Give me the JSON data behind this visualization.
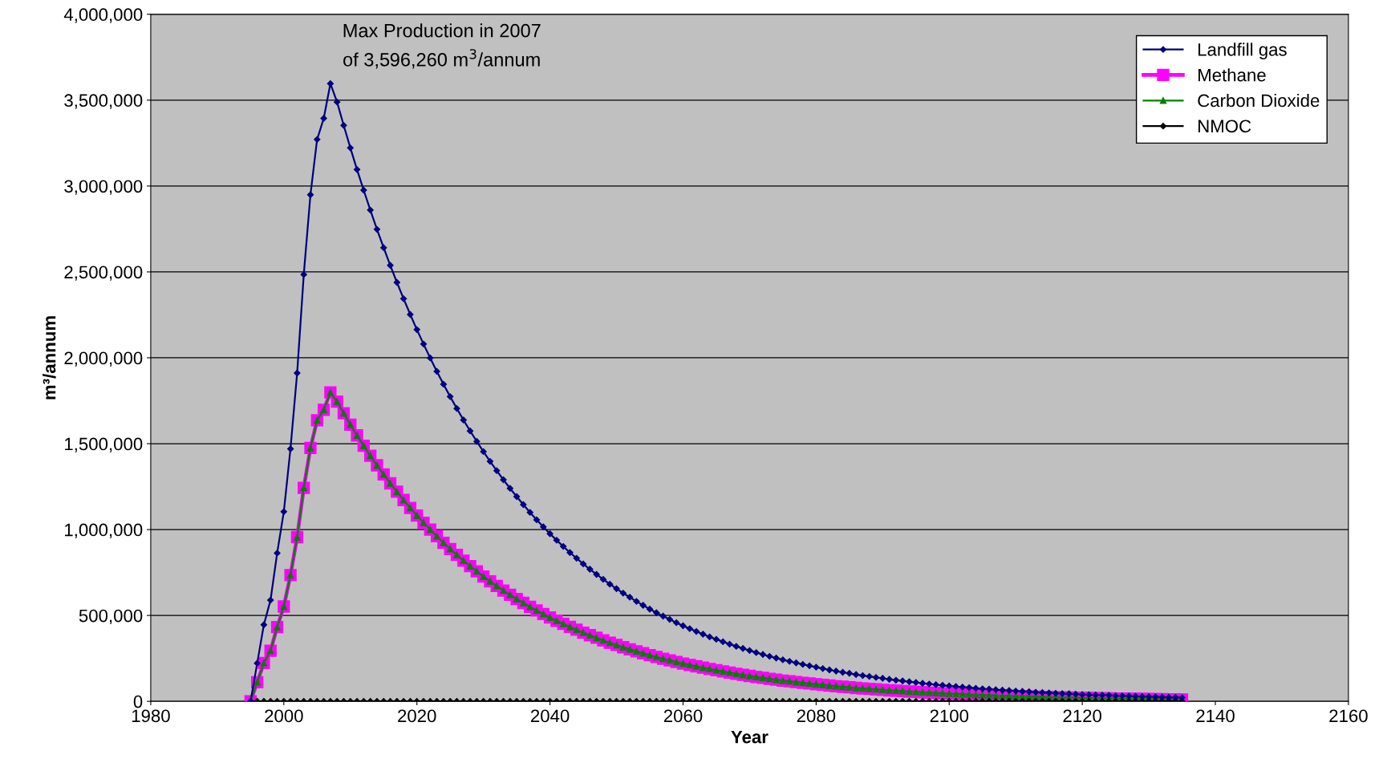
{
  "chart_data": {
    "type": "line",
    "xlabel": "Year",
    "ylabel": "m³/annum",
    "annotations": [
      {
        "text": "Max Production in 2007\nof 3,596,260 m$^{3}$/annum",
        "x": 2007,
        "y": 3596260
      }
    ],
    "x": [
      1995,
      1996,
      1997,
      1998,
      1999,
      2000,
      2001,
      2002,
      2003,
      2004,
      2005,
      2006,
      2007,
      2008,
      2009,
      2010,
      2011,
      2012,
      2013,
      2014,
      2015,
      2016,
      2017,
      2018,
      2019,
      2020,
      2021,
      2022,
      2023,
      2024,
      2025,
      2026,
      2027,
      2028,
      2029,
      2030,
      2031,
      2032,
      2033,
      2034,
      2035,
      2036,
      2037,
      2038,
      2039,
      2040,
      2041,
      2042,
      2043,
      2044,
      2045,
      2046,
      2047,
      2048,
      2049,
      2050,
      2051,
      2052,
      2053,
      2054,
      2055,
      2056,
      2057,
      2058,
      2059,
      2060,
      2061,
      2062,
      2063,
      2064,
      2065,
      2066,
      2067,
      2068,
      2069,
      2070,
      2071,
      2072,
      2073,
      2074,
      2075,
      2076,
      2077,
      2078,
      2079,
      2080,
      2081,
      2082,
      2083,
      2084,
      2085,
      2086,
      2087,
      2088,
      2089,
      2090,
      2091,
      2092,
      2093,
      2094,
      2095,
      2096,
      2097,
      2098,
      2099,
      2100,
      2101,
      2102,
      2103,
      2104,
      2105,
      2106,
      2107,
      2108,
      2109,
      2110,
      2111,
      2112,
      2113,
      2114,
      2115,
      2116,
      2117,
      2118,
      2119,
      2120,
      2121,
      2122,
      2123,
      2124,
      2125,
      2126,
      2127,
      2128,
      2129,
      2130,
      2131,
      2132,
      2133,
      2134,
      2135
    ],
    "series": [
      {
        "name": "Landfill gas",
        "color": "#000080",
        "marker": "diamond",
        "values": [
          0,
          222000,
          446000,
          589000,
          863000,
          1104000,
          1470000,
          1911000,
          2485000,
          2949000,
          3271000,
          3394000,
          3596260,
          3489000,
          3353000,
          3222000,
          3096000,
          2976000,
          2860000,
          2748000,
          2641000,
          2538000,
          2439000,
          2344000,
          2252000,
          2164000,
          2080000,
          1999000,
          1921000,
          1846000,
          1774000,
          1705000,
          1638000,
          1574000,
          1513000,
          1454000,
          1397000,
          1343000,
          1290000,
          1240000,
          1192000,
          1145000,
          1100000,
          1057000,
          1016000,
          976000,
          938000,
          902000,
          866000,
          833000,
          800000,
          769000,
          739000,
          710000,
          682000,
          656000,
          630000,
          606000,
          582000,
          559000,
          537000,
          516000,
          496000,
          477000,
          458000,
          440000,
          423000,
          407000,
          391000,
          375000,
          361000,
          347000,
          333000,
          320000,
          308000,
          296000,
          284000,
          273000,
          262000,
          252000,
          242000,
          233000,
          224000,
          215000,
          207000,
          199000,
          191000,
          183000,
          176000,
          169000,
          163000,
          156000,
          150000,
          145000,
          139000,
          134000,
          128000,
          123000,
          119000,
          114000,
          110000,
          105000,
          101000,
          97000,
          93000,
          90000,
          86000,
          83000,
          80000,
          76000,
          73000,
          71000,
          68000,
          65000,
          63000,
          60000,
          58000,
          56000,
          53000,
          51000,
          49000,
          47000,
          45000,
          44000,
          42000,
          40000,
          39000,
          37000,
          36000,
          35000,
          33000,
          32000,
          31000,
          29000,
          28000,
          27000,
          26000,
          25000,
          24000,
          23000,
          22000
        ]
      },
      {
        "name": "Methane",
        "color": "#ff00ff",
        "marker": "square",
        "values": [
          0,
          111000,
          223000,
          295000,
          432000,
          552000,
          735000,
          956000,
          1243000,
          1475000,
          1636000,
          1697000,
          1798000,
          1745000,
          1677000,
          1611000,
          1548000,
          1488000,
          1430000,
          1374000,
          1321000,
          1269000,
          1220000,
          1172000,
          1126000,
          1082000,
          1040000,
          1000000,
          961000,
          923000,
          887000,
          853000,
          819000,
          787000,
          757000,
          727000,
          699000,
          672000,
          645000,
          620000,
          596000,
          573000,
          550000,
          529000,
          508000,
          488000,
          469000,
          451000,
          433000,
          417000,
          400000,
          385000,
          370000,
          355000,
          341000,
          328000,
          315000,
          303000,
          291000,
          280000,
          269000,
          258000,
          248000,
          239000,
          229000,
          220000,
          212000,
          204000,
          196000,
          188000,
          181000,
          174000,
          167000,
          160000,
          154000,
          148000,
          142000,
          137000,
          131000,
          126000,
          121000,
          117000,
          112000,
          108000,
          104000,
          100000,
          96000,
          92000,
          88000,
          85000,
          82000,
          78000,
          75000,
          73000,
          70000,
          67000,
          64000,
          62000,
          60000,
          57000,
          55000,
          53000,
          51000,
          49000,
          47000,
          45000,
          43000,
          42000,
          40000,
          38000,
          37000,
          36000,
          34000,
          33000,
          32000,
          30000,
          29000,
          28000,
          27000,
          26000,
          25000,
          24000,
          23000,
          22000,
          21000,
          20000,
          20000,
          19000,
          18000,
          18000,
          17000,
          16000,
          16000,
          15000,
          14000,
          14000,
          13000,
          13000,
          12000,
          12000,
          11000
        ]
      },
      {
        "name": "Carbon Dioxide",
        "color": "#008000",
        "marker": "triangle",
        "values": [
          0,
          111000,
          223000,
          295000,
          432000,
          552000,
          735000,
          956000,
          1243000,
          1475000,
          1636000,
          1697000,
          1798000,
          1745000,
          1677000,
          1611000,
          1548000,
          1488000,
          1430000,
          1374000,
          1321000,
          1269000,
          1220000,
          1172000,
          1126000,
          1082000,
          1040000,
          1000000,
          961000,
          923000,
          887000,
          853000,
          819000,
          787000,
          757000,
          727000,
          699000,
          672000,
          645000,
          620000,
          596000,
          573000,
          550000,
          529000,
          508000,
          488000,
          469000,
          451000,
          433000,
          417000,
          400000,
          385000,
          370000,
          355000,
          341000,
          328000,
          315000,
          303000,
          291000,
          280000,
          269000,
          258000,
          248000,
          239000,
          229000,
          220000,
          212000,
          204000,
          196000,
          188000,
          181000,
          174000,
          167000,
          160000,
          154000,
          148000,
          142000,
          137000,
          131000,
          126000,
          121000,
          117000,
          112000,
          108000,
          104000,
          100000,
          96000,
          92000,
          88000,
          85000,
          82000,
          78000,
          75000,
          73000,
          70000,
          67000,
          64000,
          62000,
          60000,
          57000,
          55000,
          53000,
          51000,
          49000,
          47000,
          45000,
          43000,
          42000,
          40000,
          38000,
          37000,
          36000,
          34000,
          33000,
          32000,
          30000,
          29000,
          28000,
          27000,
          26000,
          25000,
          24000,
          23000,
          22000,
          21000,
          20000,
          20000,
          19000,
          18000,
          18000,
          17000,
          16000,
          16000,
          15000,
          14000,
          14000,
          13000,
          13000,
          12000,
          12000,
          11000
        ]
      },
      {
        "name": "NMOC",
        "color": "#000000",
        "marker": "diamond",
        "values": [
          0,
          0,
          0,
          0,
          0,
          0,
          0,
          0,
          0,
          0,
          0,
          0,
          0,
          0,
          0,
          0,
          0,
          0,
          0,
          0,
          0,
          0,
          0,
          0,
          0,
          0,
          0,
          0,
          0,
          0,
          0,
          0,
          0,
          0,
          0,
          0,
          0,
          0,
          0,
          0,
          0,
          0,
          0,
          0,
          0,
          0,
          0,
          0,
          0,
          0,
          0,
          0,
          0,
          0,
          0,
          0,
          0,
          0,
          0,
          0,
          0,
          0,
          0,
          0,
          0,
          0,
          0,
          0,
          0,
          0,
          0,
          0,
          0,
          0,
          0,
          0,
          0,
          0,
          0,
          0,
          0,
          0,
          0,
          0,
          0,
          0,
          0,
          0,
          0,
          0,
          0,
          0,
          0,
          0,
          0,
          0,
          0,
          0,
          0,
          0,
          0,
          0,
          0,
          0,
          0,
          0,
          0,
          0,
          0,
          0,
          0,
          0,
          0,
          0,
          0,
          0,
          0,
          0,
          0,
          0,
          0,
          0,
          0,
          0,
          0,
          0,
          0,
          0,
          0,
          0,
          0,
          0,
          0,
          0,
          0,
          0,
          0,
          0,
          0,
          0,
          0
        ]
      }
    ],
    "xlim": [
      1980,
      2160
    ],
    "xticks": [
      1980,
      2000,
      2020,
      2040,
      2060,
      2080,
      2100,
      2120,
      2140,
      2160
    ],
    "ylim": [
      0,
      4000000
    ],
    "yticks": [
      0,
      {
        "value": 500000,
        "label": "500,000"
      },
      {
        "value": 1000000,
        "label": "1,000,000"
      },
      {
        "value": 1500000,
        "label": "1,500,000"
      },
      {
        "value": 2000000,
        "label": "2,000,000"
      },
      {
        "value": 2500000,
        "label": "2,500,000"
      },
      {
        "value": 3000000,
        "label": "3,000,000"
      },
      {
        "value": 3500000,
        "label": "3,500,000"
      },
      {
        "value": 4000000,
        "label": "4,000,000"
      }
    ],
    "grid": "y",
    "legend": "top right",
    "line_style": "solid"
  }
}
